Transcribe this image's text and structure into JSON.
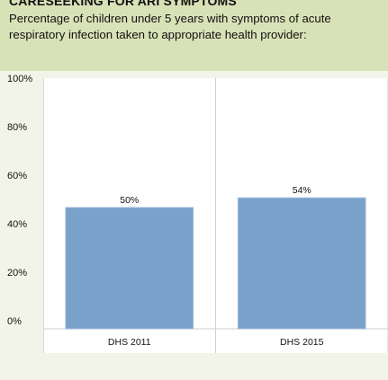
{
  "chart_data": {
    "type": "bar",
    "title": "CARESEEKING FOR ARI SYMPTOMS",
    "subtitle": "Percentage of children under 5 years with symptoms of acute respiratory infection taken to appropriate health provider:",
    "categories": [
      "DHS 2011",
      "DHS 2015"
    ],
    "values": [
      50,
      54
    ],
    "value_labels": [
      "50%",
      "54%"
    ],
    "ylim": [
      0,
      100
    ],
    "yticks": [
      0,
      20,
      40,
      60,
      80,
      100
    ],
    "ytick_labels": [
      "0%",
      "20%",
      "40%",
      "60%",
      "80%",
      "100%"
    ],
    "xlabel": "",
    "ylabel": "",
    "grid": false,
    "bar_color": "#7aa1c9",
    "bar_edge_color": "#9fbadb"
  },
  "colors": {
    "background": "#f3f4e9",
    "header_band": "#d9e2b7",
    "plot_background": "#ffffff",
    "divider": "#cfcfcf"
  }
}
